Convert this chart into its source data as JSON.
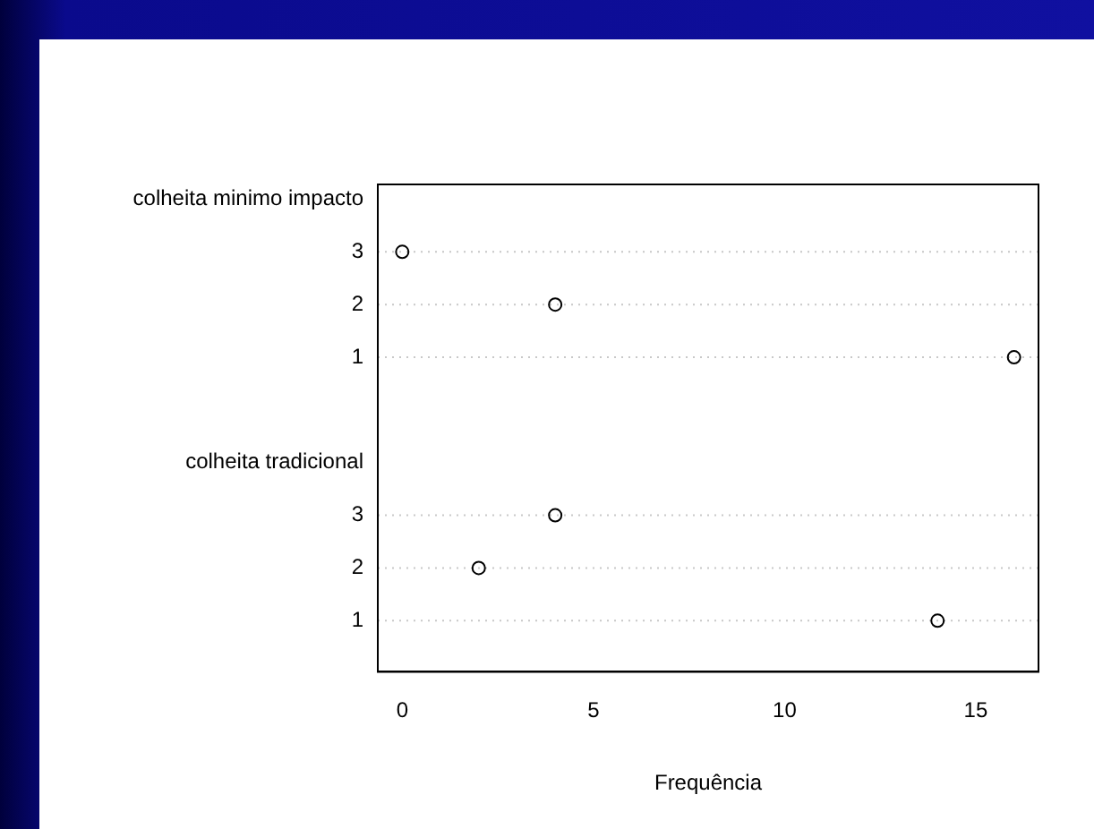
{
  "chart_data": {
    "type": "scatter",
    "orientation": "horizontal",
    "xlabel": "Frequência",
    "categories": [
      "colheita minimo impacto",
      "3",
      "2",
      "1",
      null,
      "colheita tradicional",
      "3",
      "2",
      "1"
    ],
    "values": [
      null,
      0,
      4,
      16,
      null,
      null,
      4,
      2,
      14
    ],
    "color": "#000000",
    "marker": "circle",
    "grid": "y",
    "legend": false,
    "xlim": [
      -0.64,
      16.64
    ],
    "xticks": [
      0,
      5,
      10,
      15
    ]
  }
}
